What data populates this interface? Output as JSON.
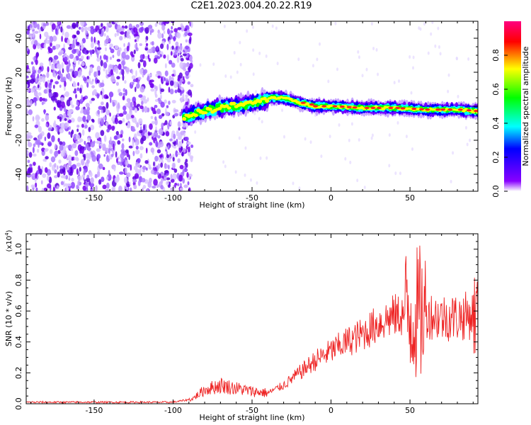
{
  "title": "C2E1.2023.004.20.22.R19",
  "chart_data": [
    {
      "type": "heatmap",
      "xlabel": "Height of straight line (km)",
      "ylabel": "Frequency (Hz)",
      "xlim": [
        -193,
        93
      ],
      "ylim": [
        -50,
        50
      ],
      "xticks": [
        -150,
        -100,
        -50,
        0,
        50
      ],
      "yticks": [
        -40,
        -20,
        0,
        20,
        40
      ],
      "colorbar": {
        "label": "Normalized spectral amplitude",
        "range": [
          0,
          1
        ],
        "ticks": [
          "0.0",
          "0.2",
          "0.4",
          "0.6",
          "0.8"
        ],
        "colors": [
          "#ffffff",
          "#8800ff",
          "#0000ff",
          "#00ffff",
          "#00ff00",
          "#ffff00",
          "#ff0000",
          "#ff0080"
        ]
      },
      "ridge": {
        "x": [
          -93,
          -85,
          -75,
          -65,
          -55,
          -45,
          -38,
          -30,
          -20,
          -10,
          0,
          20,
          40,
          60,
          80,
          93
        ],
        "y": [
          -6,
          -4,
          -2,
          0,
          1,
          3,
          5,
          5,
          2,
          0,
          0,
          -1,
          -1,
          -2,
          -2,
          -3
        ]
      }
    },
    {
      "type": "line",
      "xlabel": "Height of straight line (km)",
      "ylabel": "SNR (10 * v/v)",
      "yscale_label": "(x10",
      "yscale_exp": "4",
      "yscale_close": ")",
      "color": "#ee2222",
      "xlim": [
        -193,
        93
      ],
      "ylim": [
        0,
        1.1
      ],
      "xticks": [
        -150,
        -100,
        -50,
        0,
        50
      ],
      "yticks": [
        "0.0",
        "0.2",
        "0.4",
        "0.6",
        "0.8",
        "1.0"
      ],
      "envelope": {
        "x": [
          -193,
          -100,
          -88,
          -80,
          -70,
          -60,
          -50,
          -40,
          -30,
          -20,
          -10,
          0,
          10,
          20,
          30,
          40,
          50,
          60,
          70,
          80,
          93
        ],
        "y": [
          0.01,
          0.01,
          0.03,
          0.09,
          0.12,
          0.1,
          0.08,
          0.07,
          0.12,
          0.2,
          0.28,
          0.34,
          0.4,
          0.45,
          0.52,
          0.57,
          0.58,
          0.58,
          0.56,
          0.56,
          0.58
        ]
      }
    }
  ]
}
